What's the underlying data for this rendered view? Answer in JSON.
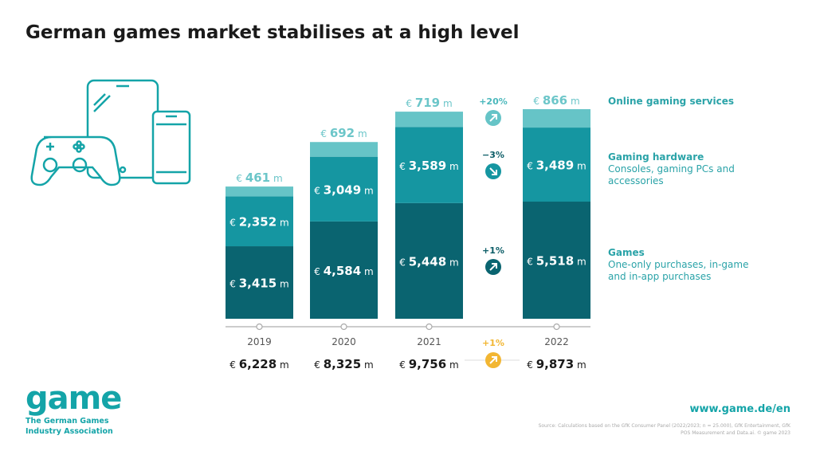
{
  "title": "German games market stabilises at a high level",
  "chart_data": {
    "type": "bar",
    "stacked": true,
    "categories": [
      "2019",
      "2020",
      "2021",
      "2022"
    ],
    "unit_prefix": "€",
    "unit_suffix": "m",
    "series": [
      {
        "name": "Games",
        "description": "One-only purchases, in-game and in-app purchases",
        "values": [
          3415,
          4584,
          5448,
          5518
        ],
        "color": "#0a6470",
        "change": "+1%"
      },
      {
        "name": "Gaming hardware",
        "description": "Consoles, gaming PCs and accessories",
        "values": [
          2352,
          3049,
          3589,
          3489
        ],
        "color": "#1596a1",
        "change": "−3%"
      },
      {
        "name": "Online gaming services",
        "description": "",
        "values": [
          461,
          692,
          719,
          866
        ],
        "color": "#66c4c7",
        "change": "+20%"
      }
    ],
    "value_labels": [
      [
        "3,415",
        "4,584",
        "5,448",
        "5,518"
      ],
      [
        "2,352",
        "3,049",
        "3,589",
        "3,489"
      ],
      [
        "461",
        "692",
        "719",
        "866"
      ]
    ],
    "totals": [
      "6,228",
      "8,325",
      "9,756",
      "9,873"
    ],
    "total_change": "+1%",
    "total_change_color": "#f2b632"
  },
  "footer": {
    "logo": "game",
    "logo_sub1": "The German Games",
    "logo_sub2": "Industry Association",
    "url": "www.game.de/en",
    "source": "Source: Calculations based on the GfK Consumer Panel (2022/2023; n = 25.000), GfK Entertainment, GfK POS Measurement and Data.ai. © game 2023"
  }
}
